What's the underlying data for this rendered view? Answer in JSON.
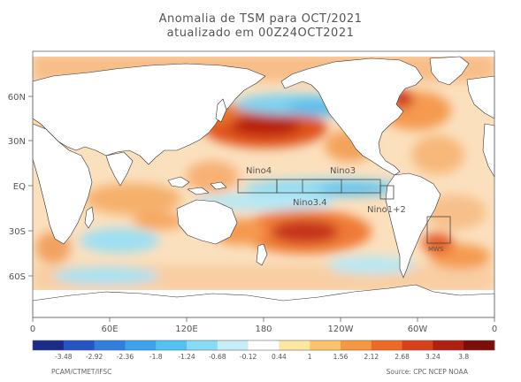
{
  "title": "Anomalia de TSM para OCT/2021",
  "subtitle": "atualizado em 00Z24OCT2021",
  "latitude_labels": [
    "60N",
    "30N",
    "EQ",
    "30S",
    "60S"
  ],
  "longitude_labels": [
    "0",
    "60E",
    "120E",
    "180",
    "120W",
    "60W",
    "0"
  ],
  "region_labels": {
    "nino4": "Nino4",
    "nino3": "Nino3",
    "nino34": "Nino3.4",
    "nino12": "Nino1+2",
    "south_box": "MWS"
  },
  "colorbar": {
    "ticks": [
      "-3.48",
      "-2.92",
      "-2.36",
      "-1.8",
      "-1.24",
      "-0.68",
      "-0.12",
      "0.44",
      "1",
      "1.56",
      "2.12",
      "2.68",
      "3.24",
      "3.8"
    ],
    "colors": [
      "#1a2b8c",
      "#2554c7",
      "#2f7fe0",
      "#3aa3ee",
      "#4fc4f3",
      "#86dcf5",
      "#c6eef8",
      "#ffffff",
      "#fde6a0",
      "#fcc36a",
      "#f8983e",
      "#ef6a22",
      "#d8401a",
      "#b01f12",
      "#7e0d0a"
    ]
  },
  "footer_left": "PCAM/CTMET/IFSC",
  "footer_right": "Source: CPC NCEP NOAA",
  "colors": {
    "ocean_warm": "#f7c08a",
    "ocean_mild": "#fbe3c4",
    "anomaly_hot": "#d23a1a",
    "anomaly_cool": "#8fdcf2",
    "land": "#ffffff",
    "coast": "#333333"
  }
}
